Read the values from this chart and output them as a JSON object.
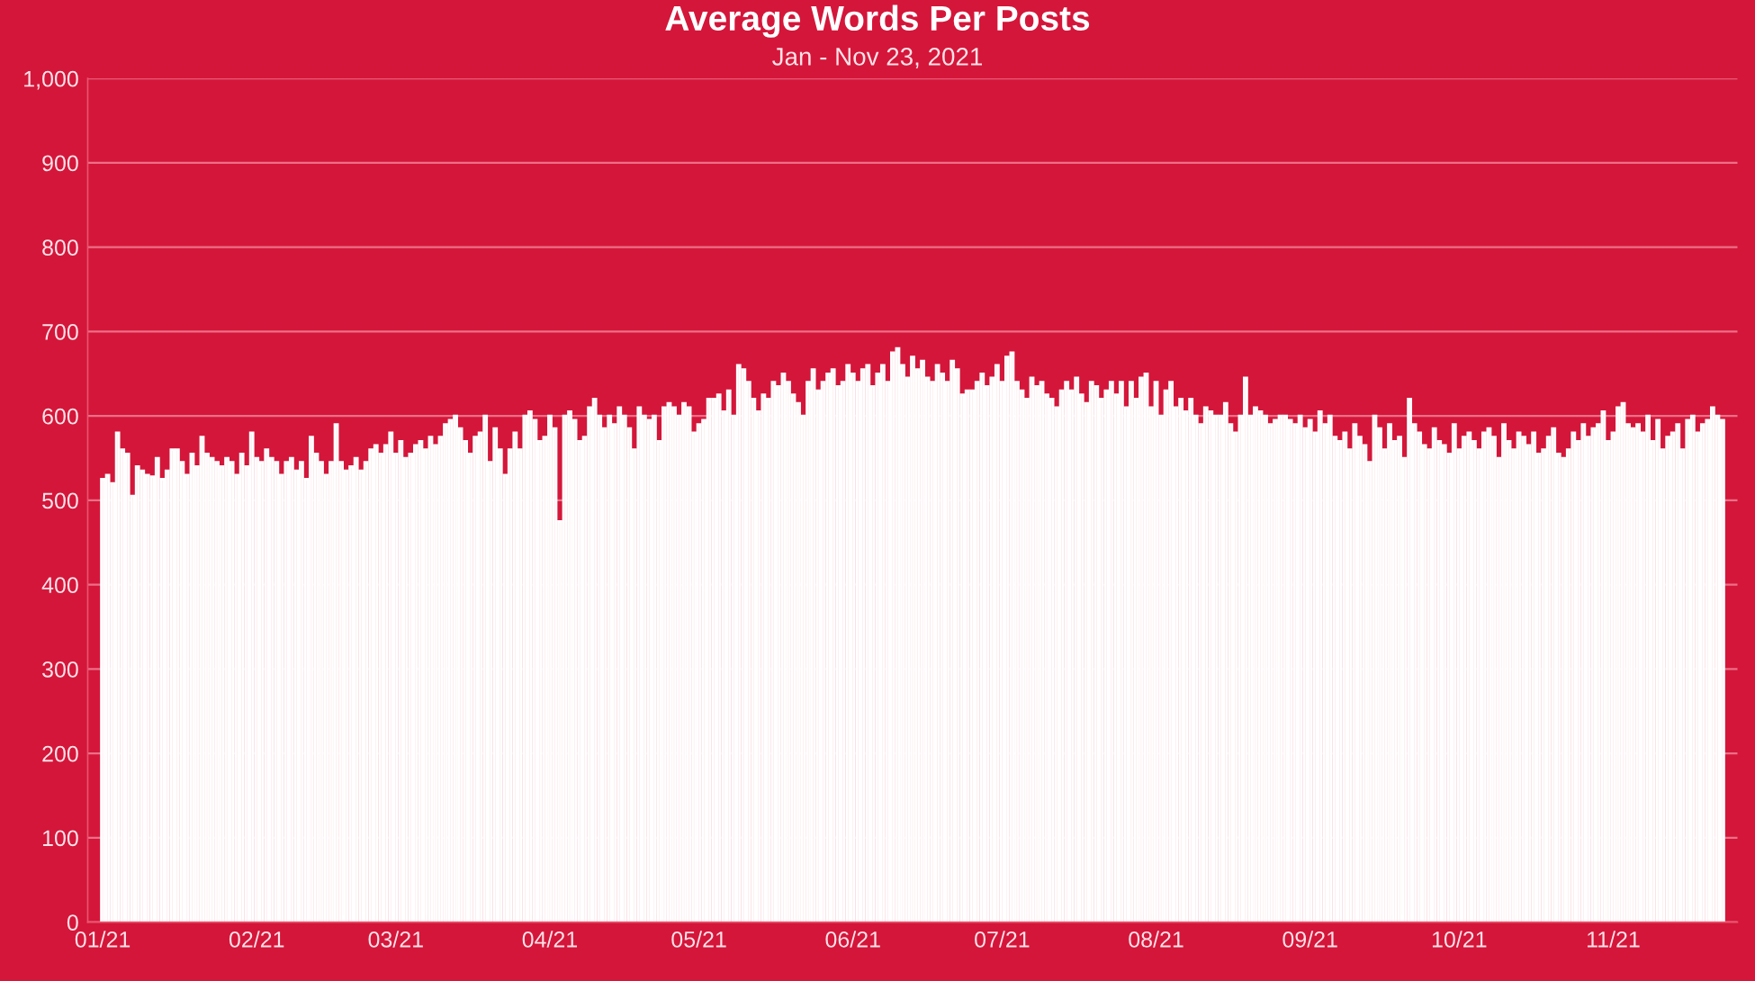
{
  "chart_data": {
    "type": "bar",
    "title": "Average Words Per Posts",
    "subtitle": "Jan - Nov 23, 2021",
    "categories": [
      "01/21",
      null,
      null,
      null,
      null,
      null,
      null,
      null,
      null,
      null,
      null,
      null,
      null,
      null,
      null,
      null,
      null,
      null,
      null,
      null,
      null,
      null,
      null,
      null,
      null,
      null,
      null,
      null,
      null,
      null,
      null,
      "02/21",
      null,
      null,
      null,
      null,
      null,
      null,
      null,
      null,
      null,
      null,
      null,
      null,
      null,
      null,
      null,
      null,
      null,
      null,
      null,
      null,
      null,
      null,
      null,
      null,
      null,
      null,
      null,
      "03/21",
      null,
      null,
      null,
      null,
      null,
      null,
      null,
      null,
      null,
      null,
      null,
      null,
      null,
      null,
      null,
      null,
      null,
      null,
      null,
      null,
      null,
      null,
      null,
      null,
      null,
      null,
      null,
      null,
      null,
      null,
      "04/21",
      null,
      null,
      null,
      null,
      null,
      null,
      null,
      null,
      null,
      null,
      null,
      null,
      null,
      null,
      null,
      null,
      null,
      null,
      null,
      null,
      null,
      null,
      null,
      null,
      null,
      null,
      null,
      null,
      null,
      "05/21",
      null,
      null,
      null,
      null,
      null,
      null,
      null,
      null,
      null,
      null,
      null,
      null,
      null,
      null,
      null,
      null,
      null,
      null,
      null,
      null,
      null,
      null,
      null,
      null,
      null,
      null,
      null,
      null,
      null,
      null,
      "06/21",
      null,
      null,
      null,
      null,
      null,
      null,
      null,
      null,
      null,
      null,
      null,
      null,
      null,
      null,
      null,
      null,
      null,
      null,
      null,
      null,
      null,
      null,
      null,
      null,
      null,
      null,
      null,
      null,
      null,
      "07/21",
      null,
      null,
      null,
      null,
      null,
      null,
      null,
      null,
      null,
      null,
      null,
      null,
      null,
      null,
      null,
      null,
      null,
      null,
      null,
      null,
      null,
      null,
      null,
      null,
      null,
      null,
      null,
      null,
      null,
      null,
      "08/21",
      null,
      null,
      null,
      null,
      null,
      null,
      null,
      null,
      null,
      null,
      null,
      null,
      null,
      null,
      null,
      null,
      null,
      null,
      null,
      null,
      null,
      null,
      null,
      null,
      null,
      null,
      null,
      null,
      null,
      null,
      "09/21",
      null,
      null,
      null,
      null,
      null,
      null,
      null,
      null,
      null,
      null,
      null,
      null,
      null,
      null,
      null,
      null,
      null,
      null,
      null,
      null,
      null,
      null,
      null,
      null,
      null,
      null,
      null,
      null,
      null,
      "10/21",
      null,
      null,
      null,
      null,
      null,
      null,
      null,
      null,
      null,
      null,
      null,
      null,
      null,
      null,
      null,
      null,
      null,
      null,
      null,
      null,
      null,
      null,
      null,
      null,
      null,
      null,
      null,
      null,
      null,
      null,
      "11/21",
      null,
      null,
      null,
      null,
      null,
      null,
      null,
      null,
      null,
      null,
      null,
      null,
      null,
      null,
      null,
      null,
      null,
      null,
      null,
      null,
      null,
      null
    ],
    "values": [
      525,
      530,
      520,
      580,
      560,
      555,
      505,
      540,
      535,
      530,
      528,
      550,
      525,
      535,
      560,
      560,
      545,
      530,
      555,
      540,
      575,
      555,
      550,
      545,
      540,
      550,
      545,
      530,
      555,
      540,
      580,
      550,
      545,
      560,
      550,
      545,
      530,
      545,
      550,
      535,
      545,
      525,
      575,
      555,
      545,
      530,
      545,
      590,
      545,
      535,
      540,
      550,
      535,
      545,
      560,
      565,
      555,
      565,
      580,
      555,
      570,
      550,
      555,
      565,
      570,
      560,
      575,
      565,
      575,
      590,
      595,
      600,
      585,
      570,
      555,
      575,
      580,
      600,
      545,
      585,
      560,
      530,
      560,
      580,
      560,
      600,
      605,
      595,
      570,
      575,
      600,
      585,
      475,
      600,
      605,
      595,
      570,
      575,
      610,
      620,
      600,
      585,
      600,
      590,
      610,
      600,
      585,
      560,
      610,
      600,
      595,
      600,
      570,
      610,
      615,
      610,
      600,
      615,
      610,
      580,
      590,
      595,
      620,
      620,
      625,
      605,
      630,
      600,
      660,
      655,
      640,
      620,
      605,
      625,
      620,
      640,
      635,
      650,
      640,
      625,
      615,
      600,
      640,
      655,
      630,
      640,
      650,
      655,
      635,
      640,
      660,
      650,
      640,
      655,
      660,
      635,
      650,
      660,
      640,
      675,
      680,
      660,
      645,
      670,
      655,
      665,
      645,
      640,
      660,
      650,
      640,
      665,
      655,
      625,
      630,
      630,
      640,
      650,
      635,
      645,
      660,
      640,
      670,
      675,
      640,
      630,
      620,
      645,
      635,
      640,
      625,
      620,
      610,
      630,
      640,
      630,
      645,
      625,
      615,
      640,
      635,
      620,
      630,
      640,
      625,
      640,
      610,
      640,
      620,
      645,
      650,
      610,
      640,
      600,
      630,
      640,
      610,
      620,
      605,
      620,
      600,
      590,
      610,
      605,
      600,
      600,
      615,
      590,
      580,
      600,
      645,
      600,
      610,
      605,
      600,
      590,
      595,
      600,
      600,
      595,
      590,
      600,
      585,
      595,
      580,
      605,
      590,
      600,
      575,
      570,
      580,
      560,
      590,
      575,
      565,
      545,
      600,
      585,
      560,
      590,
      570,
      575,
      550,
      620,
      590,
      580,
      565,
      560,
      585,
      570,
      565,
      555,
      590,
      560,
      575,
      580,
      570,
      560,
      580,
      585,
      575,
      550,
      590,
      570,
      560,
      580,
      575,
      565,
      580,
      555,
      560,
      575,
      585,
      555,
      550,
      560,
      580,
      570,
      590,
      575,
      585,
      590,
      605,
      570,
      580,
      610,
      615,
      590,
      585,
      590,
      580,
      600,
      570,
      595,
      560,
      575,
      580,
      590,
      560,
      595,
      600,
      580,
      590,
      595,
      610,
      600,
      595
    ],
    "color": "#f9c3cd",
    "ylim": [
      0,
      1000
    ],
    "yticks": [
      0,
      100,
      200,
      300,
      400,
      500,
      600,
      700,
      800,
      900,
      {
        "value": 1000,
        "label": "1,000"
      }
    ],
    "grid": "y"
  }
}
